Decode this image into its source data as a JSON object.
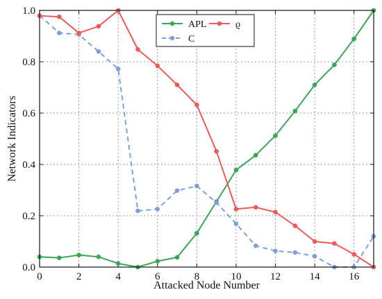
{
  "chart_data": {
    "type": "line",
    "title": "",
    "xlabel": "Attacked Node Number",
    "ylabel": "Network Indicators",
    "xlim": [
      0,
      17
    ],
    "ylim": [
      0,
      1.0
    ],
    "xticks": [
      0,
      2,
      4,
      6,
      8,
      10,
      12,
      14,
      16
    ],
    "yticks": [
      0.0,
      0.2,
      0.4,
      0.6,
      0.8,
      1.0
    ],
    "grid": true,
    "legend_position": "top-center",
    "x": [
      0,
      1,
      2,
      3,
      4,
      5,
      6,
      7,
      8,
      9,
      10,
      11,
      12,
      13,
      14,
      15,
      16,
      17
    ],
    "series": [
      {
        "name": "APL",
        "color": "#3aa655",
        "line_style": "solid",
        "values": [
          0.04,
          0.036,
          0.047,
          0.04,
          0.014,
          0.0,
          0.023,
          0.038,
          0.132,
          0.255,
          0.378,
          0.436,
          0.512,
          0.608,
          0.71,
          0.788,
          0.889,
          1.0
        ]
      },
      {
        "name": "C",
        "color": "#7fa0d6",
        "line_style": "dashed",
        "values": [
          0.98,
          0.912,
          0.906,
          0.84,
          0.772,
          0.219,
          0.226,
          0.298,
          0.316,
          0.251,
          0.169,
          0.083,
          0.063,
          0.057,
          0.042,
          0.0,
          0.0,
          0.12
        ]
      },
      {
        "name": "ϱ",
        "color": "#ee5a5a",
        "line_style": "solid",
        "values": [
          0.979,
          0.975,
          0.912,
          0.938,
          1.0,
          0.848,
          0.784,
          0.71,
          0.632,
          0.451,
          0.226,
          0.233,
          0.214,
          0.161,
          0.1,
          0.092,
          0.05,
          0.0
        ]
      }
    ]
  }
}
